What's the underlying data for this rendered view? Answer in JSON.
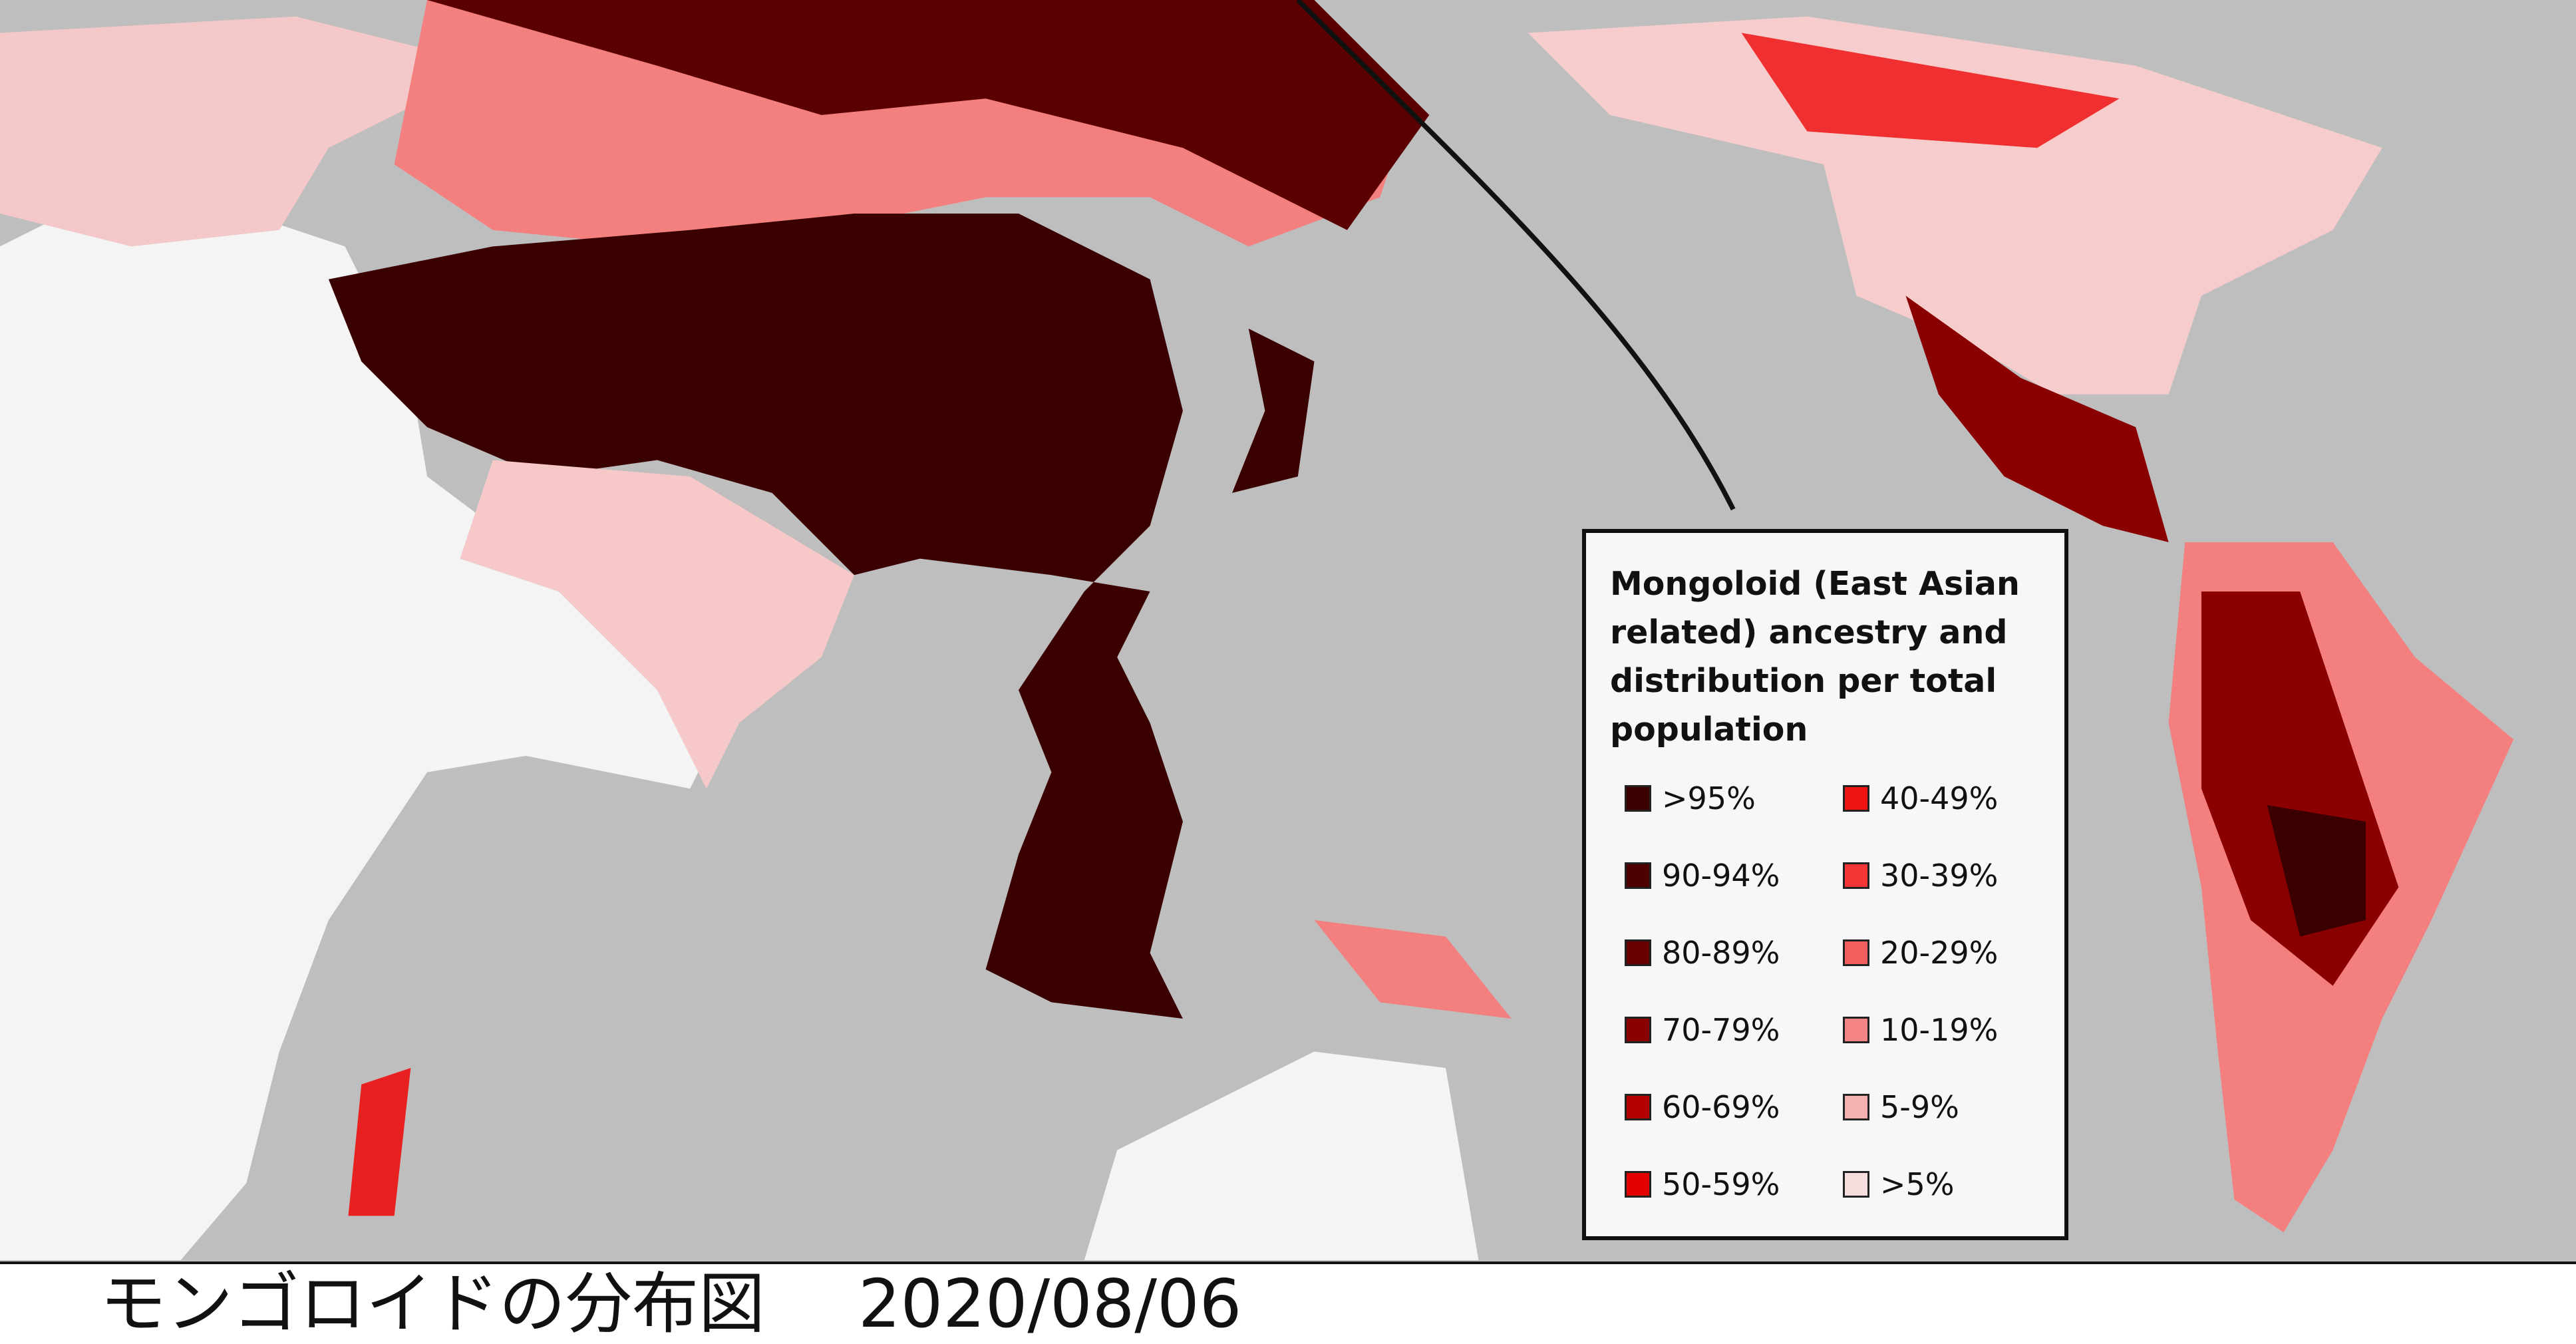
{
  "legend": {
    "title": "Mongoloid (East Asian related) ancestry and distribution per total population",
    "items": [
      {
        "label": ">95%",
        "color": "#3a0000"
      },
      {
        "label": "90-94%",
        "color": "#4e0000"
      },
      {
        "label": "80-89%",
        "color": "#690000"
      },
      {
        "label": "70-79%",
        "color": "#8a0000"
      },
      {
        "label": "60-69%",
        "color": "#b30000"
      },
      {
        "label": "50-59%",
        "color": "#e30000"
      },
      {
        "label": "40-49%",
        "color": "#f01414"
      },
      {
        "label": "30-39%",
        "color": "#f23535"
      },
      {
        "label": "20-29%",
        "color": "#f35e5e"
      },
      {
        "label": "10-19%",
        "color": "#f58585"
      },
      {
        "label": "5-9%",
        "color": "#f6b2b2"
      },
      {
        "label": ">5%",
        "color": "#f7dede"
      }
    ]
  },
  "caption": {
    "title": "モンゴロイドの分布図",
    "date": "2020/08/06"
  }
}
